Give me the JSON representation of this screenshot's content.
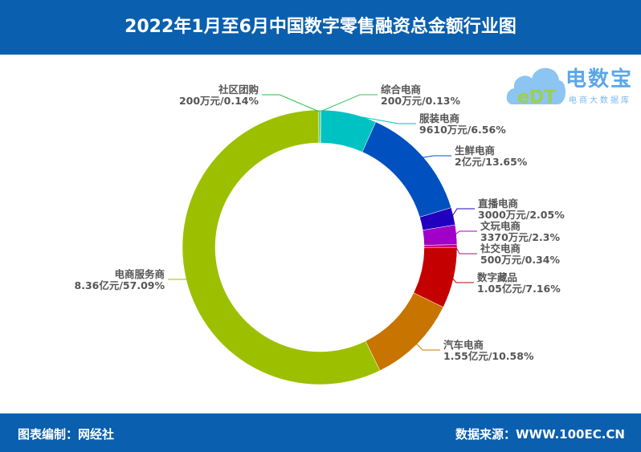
{
  "title": "2022年1月至6月中国数字零售融资总金额行业图",
  "footer": {
    "left": "图表编制：网经社",
    "right": "数据来源：WWW.100EC.CN"
  },
  "logo": {
    "name": "电数宝",
    "sub": "电商大数据库",
    "mark": "eDT"
  },
  "chart_data": {
    "type": "pie",
    "variant": "donut",
    "title": "2022年1月至6月中国数字零售融资总金额行业图",
    "slices": [
      {
        "label": "综合电商",
        "amount": "200万元",
        "percent": 0.13,
        "color": "#3cc060"
      },
      {
        "label": "服装电商",
        "amount": "9610万元",
        "percent": 6.56,
        "color": "#00c2c2"
      },
      {
        "label": "生鲜电商",
        "amount": "2亿元",
        "percent": 13.65,
        "color": "#0050c0"
      },
      {
        "label": "直播电商",
        "amount": "3000万元",
        "percent": 2.05,
        "color": "#2200c0"
      },
      {
        "label": "文玩电商",
        "amount": "3370万元",
        "percent": 2.3,
        "color": "#a000c8"
      },
      {
        "label": "社交电商",
        "amount": "500万元",
        "percent": 0.34,
        "color": "#d0007a"
      },
      {
        "label": "数字藏品",
        "amount": "1.05亿元",
        "percent": 7.16,
        "color": "#c40000"
      },
      {
        "label": "汽车电商",
        "amount": "1.55亿元",
        "percent": 10.58,
        "color": "#c87400"
      },
      {
        "label": "电商服务商",
        "amount": "8.36亿元",
        "percent": 57.09,
        "color": "#9cc000"
      },
      {
        "label": "社区团购",
        "amount": "200万元",
        "percent": 0.14,
        "color": "#20c040"
      }
    ],
    "legend": "none"
  }
}
